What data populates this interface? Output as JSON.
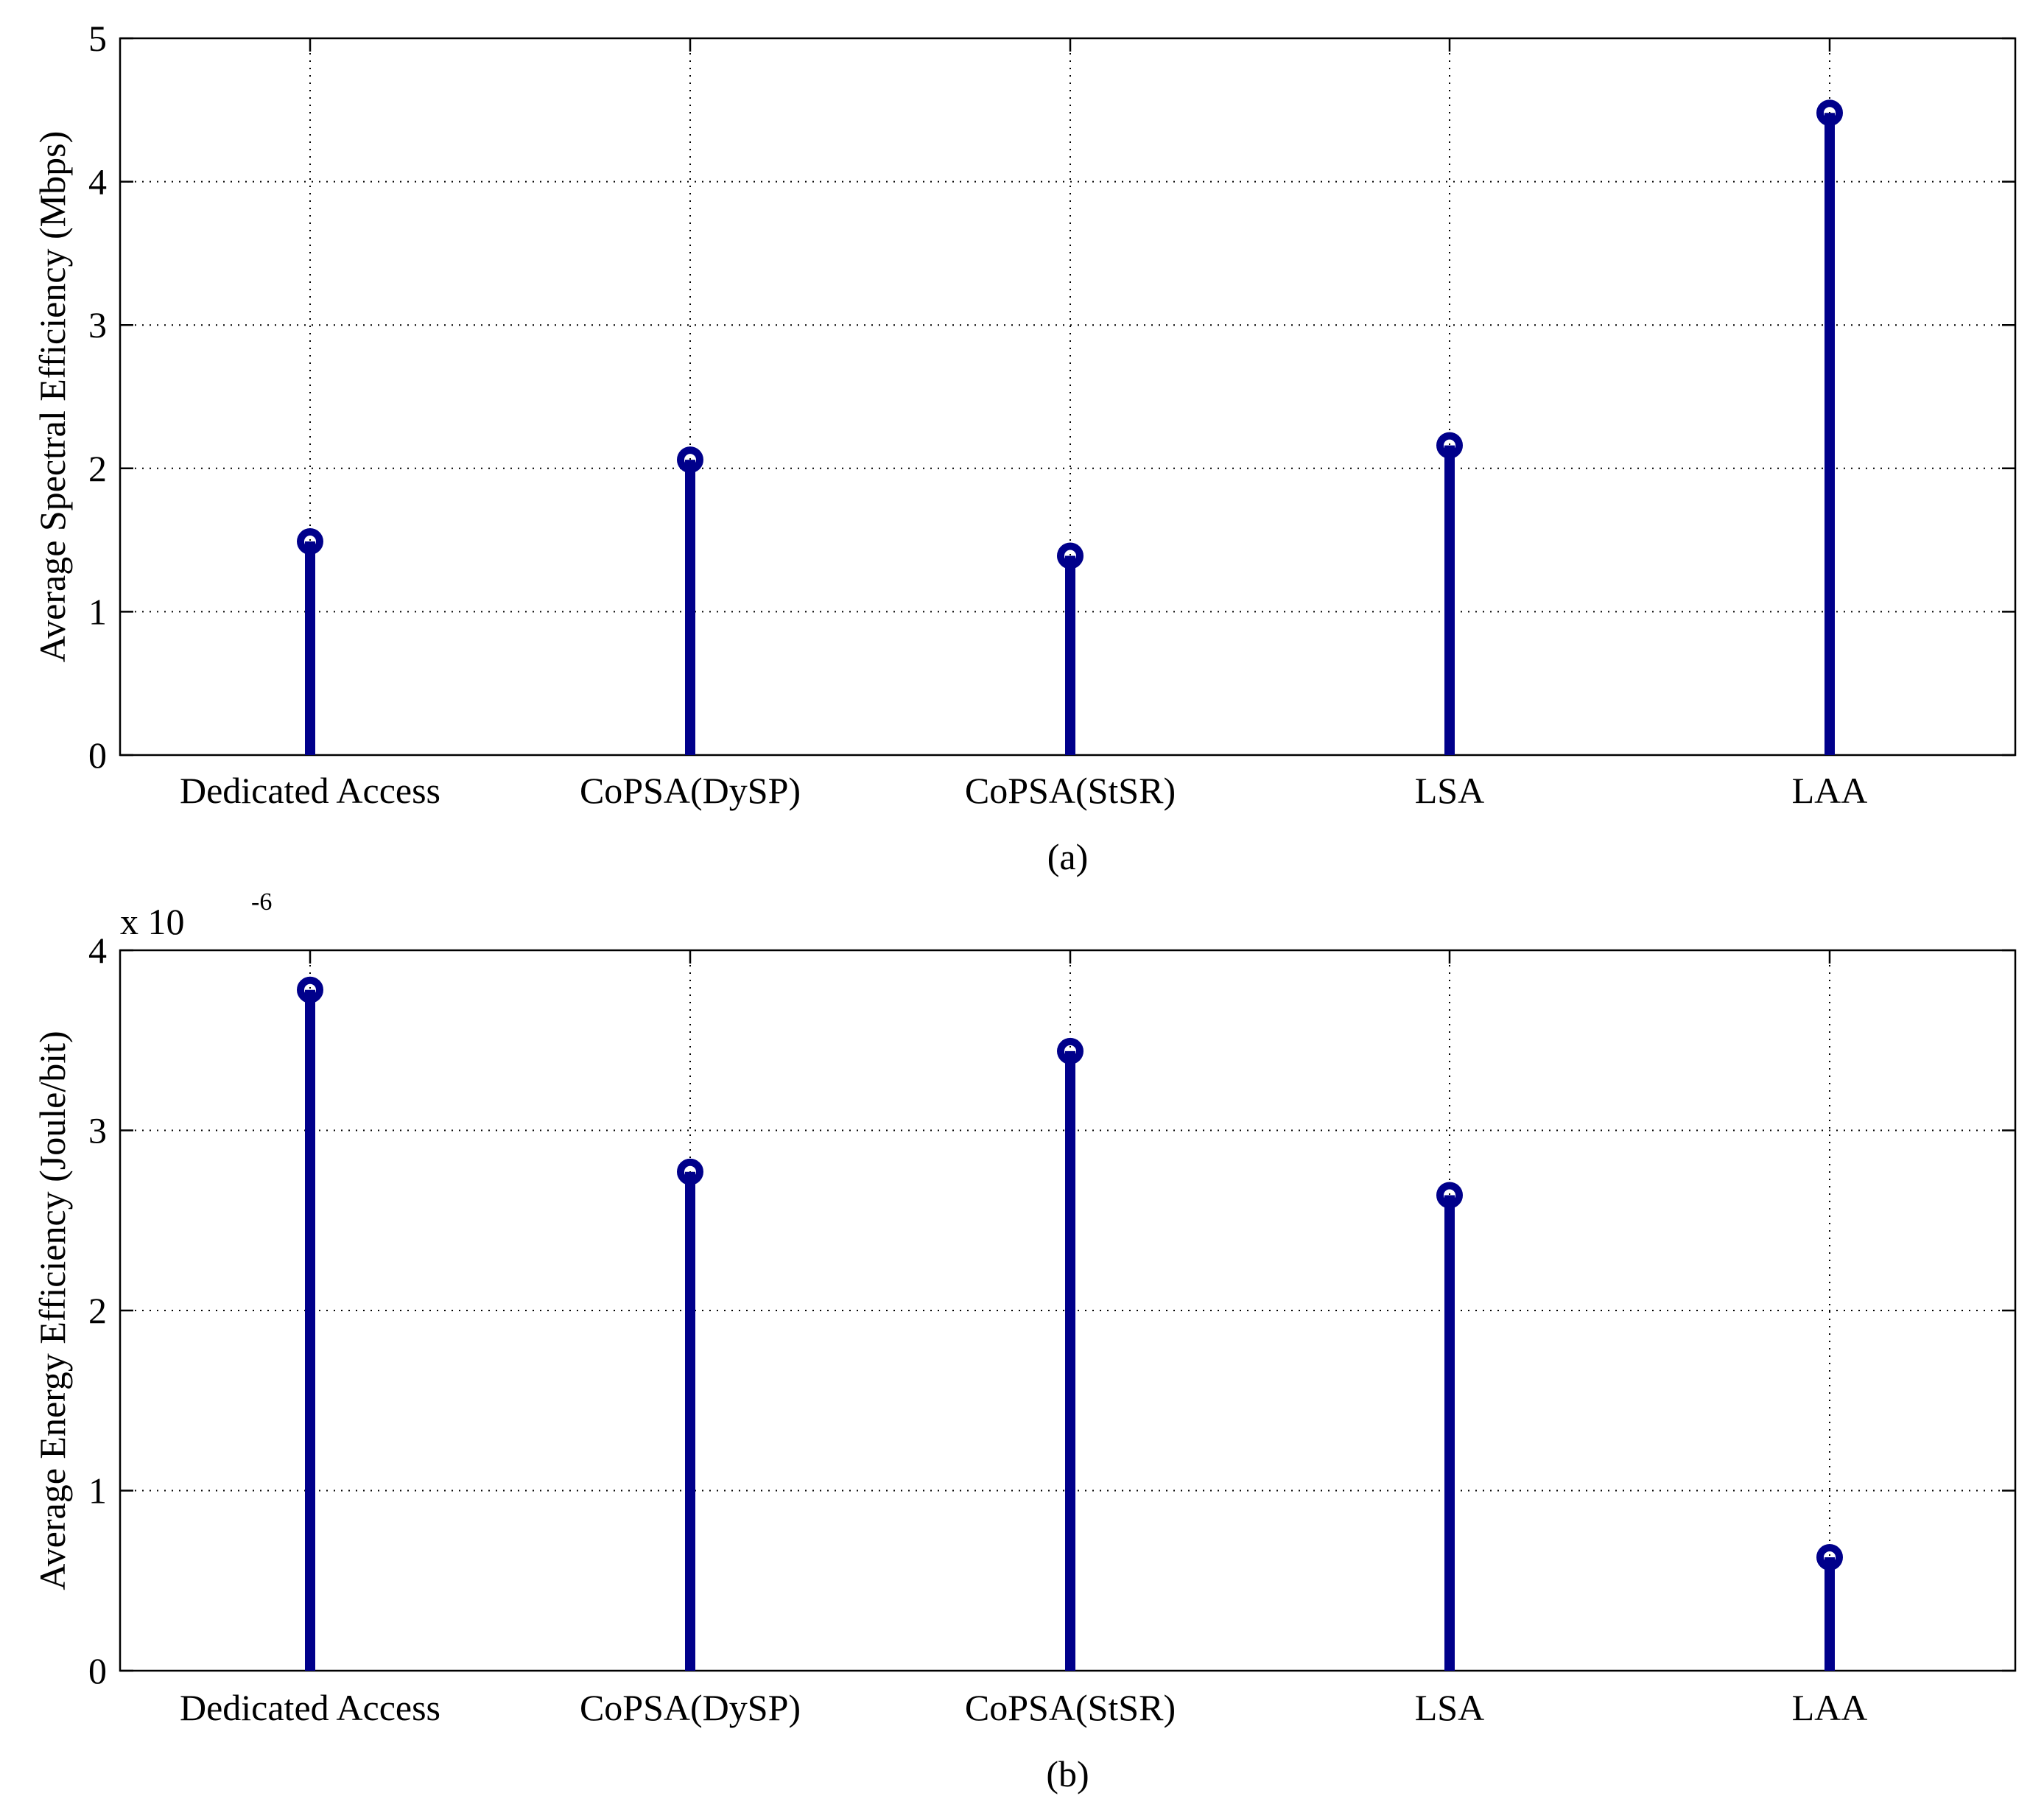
{
  "chart_data": [
    {
      "type": "stem",
      "panel": "a",
      "caption": "(a)",
      "categories": [
        "Dedicated Access",
        "CoPSA(DySP)",
        "CoPSA(StSR)",
        "LSA",
        "LAA"
      ],
      "values": [
        1.49,
        2.06,
        1.39,
        2.16,
        4.48
      ],
      "xlabel": "",
      "ylabel": "Average Spectral Efficiency (Mbps)",
      "ylim": [
        0,
        5
      ],
      "yticks": [
        0,
        1,
        2,
        3,
        4,
        5
      ],
      "y_multiplier": "",
      "grid": true,
      "color": "#00008B"
    },
    {
      "type": "stem",
      "panel": "b",
      "caption": "(b)",
      "categories": [
        "Dedicated Access",
        "CoPSA(DySP)",
        "CoPSA(StSR)",
        "LSA",
        "LAA"
      ],
      "values": [
        3.78e-06,
        2.77e-06,
        3.44e-06,
        2.64e-06,
        6.3e-07
      ],
      "xlabel": "",
      "ylabel": "Average Energy Efficiency (Joule/bit)",
      "ylim": [
        0,
        4e-06
      ],
      "yticks": [
        0,
        1,
        2,
        3,
        4
      ],
      "y_multiplier": "x 10",
      "y_multiplier_exponent": "-6",
      "grid": true,
      "color": "#00008B"
    }
  ]
}
